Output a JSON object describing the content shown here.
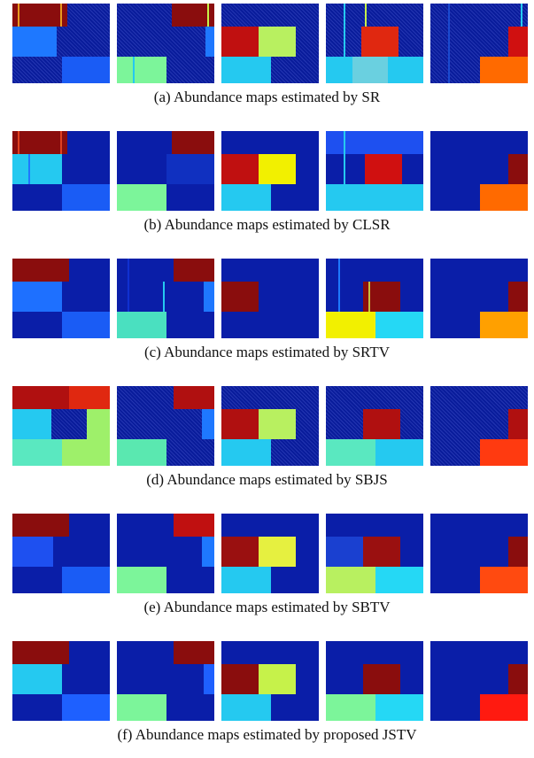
{
  "colors": {
    "background": "#0a1ea8",
    "dark_red": "#8a0d0d",
    "red": "#c01010",
    "orange": "#ff7000",
    "yellow": "#f2f000",
    "yellow_green": "#c6f24a",
    "green": "#7cf59a",
    "cyan": "#25c9f0",
    "light_blue": "#1e78ff",
    "blue": "#1040e0"
  },
  "rows": [
    {
      "caption": "(a) Abundance maps estimated by SR"
    },
    {
      "caption": "(b) Abundance maps estimated by CLSR"
    },
    {
      "caption": "(c) Abundance maps estimated by SRTV"
    },
    {
      "caption": "(d) Abundance maps estimated by SBJS"
    },
    {
      "caption": "(e) Abundance maps estimated by SBTV"
    },
    {
      "caption": "(f) Abundance maps estimated by proposed JSTV"
    }
  ]
}
